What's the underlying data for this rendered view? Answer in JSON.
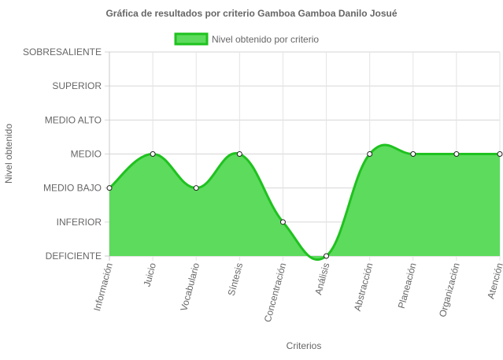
{
  "chart_data": {
    "type": "area",
    "title": "Gráfica de resultados por criterio Gamboa Gamboa Danilo Josué",
    "xlabel": "Criterios",
    "ylabel": "Nivel obtenido",
    "categories": [
      "Información",
      "Juicio",
      "Vocabulario",
      "Síntesis",
      "Concentración",
      "Análisis",
      "Abstracción",
      "Planeación",
      "Organización",
      "Atención"
    ],
    "y_levels": [
      "DEFICIENTE",
      "INFERIOR",
      "MEDIO BAJO",
      "MEDIO",
      "MEDIO ALTO",
      "SUPERIOR",
      "SOBRESALIENTE"
    ],
    "ylim": [
      0,
      6
    ],
    "series": [
      {
        "name": "Nivel obtenido por criterio",
        "values": [
          2,
          3,
          2,
          3,
          1,
          0,
          3,
          3,
          3,
          3
        ],
        "value_labels": [
          "MEDIO BAJO",
          "MEDIO",
          "MEDIO BAJO",
          "MEDIO",
          "INFERIOR",
          "DEFICIENTE",
          "MEDIO",
          "MEDIO",
          "MEDIO",
          "MEDIO"
        ],
        "color": "#1fc21f",
        "fill": "#5ddb5d"
      }
    ],
    "grid": true,
    "legend_position": "top"
  }
}
